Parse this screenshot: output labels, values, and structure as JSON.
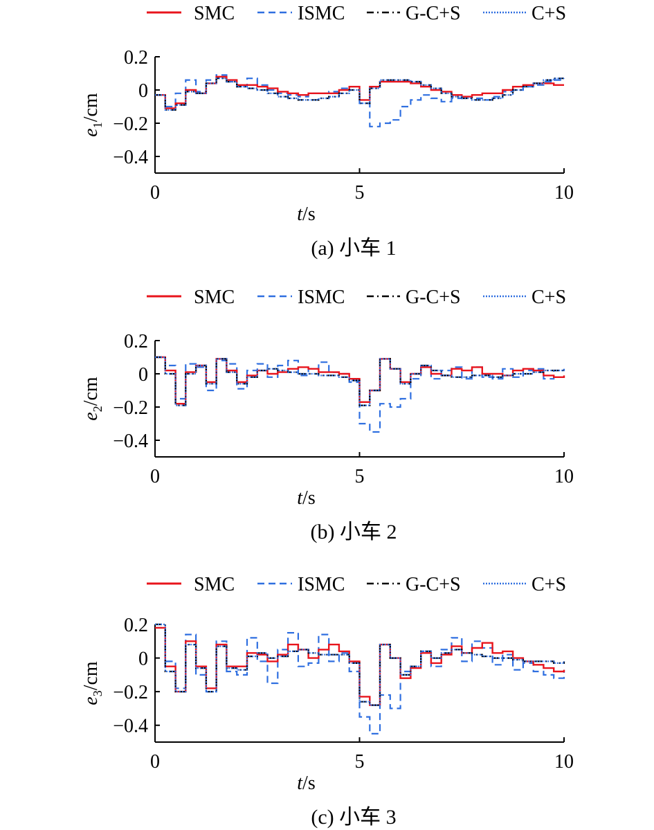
{
  "legend": [
    {
      "name": "SMC",
      "color": "#e8141c",
      "dash": "solid"
    },
    {
      "name": "ISMC",
      "color": "#2f6fe0",
      "dash": "dashed"
    },
    {
      "name": "G-C+S",
      "color": "#000000",
      "dash": "dashdot"
    },
    {
      "name": "C+S",
      "color": "#2f6fe0",
      "dash": "dotted"
    }
  ],
  "chart_data": [
    {
      "type": "line",
      "caption": "(a) 小车 1",
      "xlabel": "t/s",
      "ylabel": "e1/cm",
      "xlim": [
        0,
        10
      ],
      "ylim": [
        -0.5,
        0.2
      ],
      "xticks": [
        "0",
        "5",
        "10"
      ],
      "yticks": [
        "0.2",
        "0",
        "−0.2",
        "−0.4"
      ],
      "x": [
        0,
        0.25,
        0.5,
        0.75,
        1,
        1.25,
        1.5,
        1.75,
        2,
        2.25,
        2.5,
        2.75,
        3,
        3.25,
        3.5,
        3.75,
        4,
        4.25,
        4.5,
        4.75,
        5,
        5.25,
        5.5,
        5.75,
        6,
        6.25,
        6.5,
        6.75,
        7,
        7.25,
        7.5,
        7.75,
        8,
        8.25,
        8.5,
        8.75,
        9,
        9.25,
        9.5,
        9.75,
        10
      ],
      "series": [
        {
          "name": "SMC",
          "values": [
            -0.03,
            -0.11,
            -0.08,
            0,
            -0.02,
            0.04,
            0.08,
            0.06,
            0.03,
            0.03,
            0.02,
            0.01,
            -0.01,
            -0.02,
            -0.03,
            -0.02,
            -0.02,
            -0.02,
            0,
            0.02,
            -0.06,
            0.02,
            0.05,
            0.05,
            0.05,
            0.04,
            0.02,
            0,
            -0.01,
            -0.03,
            -0.04,
            -0.03,
            -0.02,
            -0.02,
            0,
            0.02,
            0.03,
            0.04,
            0.04,
            0.03,
            0.03
          ]
        },
        {
          "name": "ISMC",
          "values": [
            -0.03,
            -0.1,
            -0.02,
            0.06,
            -0.01,
            0.06,
            0.09,
            0.05,
            0.02,
            0.07,
            0.03,
            0,
            -0.02,
            -0.03,
            -0.04,
            -0.02,
            -0.02,
            -0.01,
            0.01,
            0.02,
            -0.08,
            -0.22,
            -0.2,
            -0.18,
            -0.1,
            -0.06,
            -0.03,
            -0.05,
            -0.07,
            -0.05,
            -0.04,
            -0.05,
            -0.06,
            -0.04,
            -0.01,
            0,
            0.02,
            0.03,
            0.05,
            0.06,
            0.07
          ]
        },
        {
          "name": "G-C+S",
          "values": [
            -0.03,
            -0.12,
            -0.09,
            -0.01,
            -0.02,
            0.04,
            0.07,
            0.05,
            0.02,
            0.01,
            0,
            -0.02,
            -0.04,
            -0.05,
            -0.06,
            -0.06,
            -0.05,
            -0.04,
            -0.02,
            0,
            -0.08,
            0.01,
            0.06,
            0.06,
            0.06,
            0.05,
            0.03,
            0.01,
            -0.02,
            -0.04,
            -0.05,
            -0.06,
            -0.06,
            -0.05,
            -0.03,
            0,
            0.02,
            0.04,
            0.06,
            0.07,
            0.07
          ]
        },
        {
          "name": "C+S",
          "values": [
            -0.03,
            -0.12,
            -0.09,
            -0.01,
            -0.02,
            0.04,
            0.07,
            0.05,
            0.02,
            0.01,
            0,
            -0.02,
            -0.04,
            -0.05,
            -0.06,
            -0.06,
            -0.05,
            -0.04,
            -0.02,
            0,
            -0.08,
            0.01,
            0.06,
            0.06,
            0.06,
            0.05,
            0.03,
            0.01,
            -0.02,
            -0.04,
            -0.05,
            -0.06,
            -0.06,
            -0.05,
            -0.03,
            0,
            0.02,
            0.04,
            0.06,
            0.07,
            0.07
          ]
        }
      ]
    },
    {
      "type": "line",
      "caption": "(b) 小车 2",
      "xlabel": "t/s",
      "ylabel": "e2/cm",
      "xlim": [
        0,
        10
      ],
      "ylim": [
        -0.5,
        0.2
      ],
      "xticks": [
        "0",
        "5",
        "10"
      ],
      "yticks": [
        "0.2",
        "0",
        "−0.2",
        "−0.4"
      ],
      "x": [
        0,
        0.25,
        0.5,
        0.75,
        1,
        1.25,
        1.5,
        1.75,
        2,
        2.25,
        2.5,
        2.75,
        3,
        3.25,
        3.5,
        3.75,
        4,
        4.25,
        4.5,
        4.75,
        5,
        5.25,
        5.5,
        5.75,
        6,
        6.25,
        6.5,
        6.75,
        7,
        7.25,
        7.5,
        7.75,
        8,
        8.25,
        8.5,
        8.75,
        9,
        9.25,
        9.5,
        9.75,
        10
      ],
      "series": [
        {
          "name": "SMC",
          "values": [
            0.1,
            0.02,
            -0.18,
            0.01,
            0.05,
            -0.05,
            0.09,
            0.02,
            -0.05,
            -0.01,
            0.02,
            0,
            0.01,
            0.03,
            0.04,
            0.03,
            0.01,
            0.01,
            0,
            -0.03,
            -0.17,
            -0.1,
            0.09,
            0.03,
            -0.05,
            0,
            0.04,
            0,
            -0.01,
            0.03,
            0.02,
            0.04,
            0,
            0,
            -0.01,
            0.02,
            0.03,
            0.02,
            -0.01,
            -0.02,
            -0.01
          ]
        },
        {
          "name": "ISMC",
          "values": [
            0.1,
            0.05,
            -0.15,
            0.06,
            0.04,
            -0.1,
            0.08,
            0.06,
            -0.09,
            0.02,
            0.06,
            -0.02,
            0.05,
            0.08,
            -0.01,
            0.03,
            0.07,
            0.01,
            0,
            -0.05,
            -0.3,
            -0.35,
            -0.18,
            -0.2,
            -0.15,
            -0.03,
            0.04,
            -0.03,
            0.02,
            0.04,
            -0.03,
            0.04,
            -0.02,
            -0.03,
            0.03,
            -0.02,
            0.02,
            0.03,
            -0.03,
            0.02,
            0.03
          ]
        },
        {
          "name": "G-C+S",
          "values": [
            0.1,
            0,
            -0.19,
            0,
            0.05,
            -0.06,
            0.09,
            0.01,
            -0.06,
            -0.02,
            0.02,
            0.03,
            0.02,
            0.01,
            0,
            0,
            -0.01,
            -0.01,
            -0.02,
            -0.04,
            -0.19,
            -0.1,
            0.09,
            0.03,
            -0.06,
            0,
            0.05,
            0.02,
            -0.01,
            -0.02,
            -0.02,
            -0.01,
            -0.01,
            -0.02,
            -0.01,
            0,
            0,
            0.01,
            0.02,
            0.02,
            0.02
          ]
        },
        {
          "name": "C+S",
          "values": [
            0.1,
            0,
            -0.19,
            0,
            0.05,
            -0.06,
            0.09,
            0.01,
            -0.06,
            -0.02,
            0.02,
            0.03,
            0.02,
            0.01,
            0,
            0,
            -0.01,
            -0.01,
            -0.02,
            -0.04,
            -0.19,
            -0.1,
            0.09,
            0.03,
            -0.06,
            0,
            0.05,
            0.02,
            -0.01,
            -0.02,
            -0.02,
            -0.01,
            -0.01,
            -0.02,
            -0.01,
            0,
            0,
            0.01,
            0.02,
            0.02,
            0.02
          ]
        }
      ]
    },
    {
      "type": "line",
      "caption": "(c) 小车 3",
      "xlabel": "t/s",
      "ylabel": "e3/cm",
      "xlim": [
        0,
        10
      ],
      "ylim": [
        -0.5,
        0.2
      ],
      "xticks": [
        "0",
        "5",
        "10"
      ],
      "yticks": [
        "0.2",
        "0",
        "−0.2",
        "−0.4"
      ],
      "x": [
        0,
        0.25,
        0.5,
        0.75,
        1,
        1.25,
        1.5,
        1.75,
        2,
        2.25,
        2.5,
        2.75,
        3,
        3.25,
        3.5,
        3.75,
        4,
        4.25,
        4.5,
        4.75,
        5,
        5.25,
        5.5,
        5.75,
        6,
        6.25,
        6.5,
        6.75,
        7,
        7.25,
        7.5,
        7.75,
        8,
        8.25,
        8.5,
        8.75,
        9,
        9.25,
        9.5,
        9.75,
        10
      ],
      "series": [
        {
          "name": "SMC",
          "values": [
            0.18,
            -0.05,
            -0.2,
            0.1,
            -0.05,
            -0.18,
            0.08,
            -0.05,
            -0.05,
            0.03,
            0.02,
            -0.02,
            0.02,
            0.08,
            0.05,
            0,
            0.05,
            0.08,
            0.04,
            -0.02,
            -0.23,
            -0.28,
            0.08,
            0,
            -0.12,
            -0.06,
            0.03,
            -0.03,
            0.02,
            0.07,
            0.03,
            0.06,
            0.09,
            0.03,
            0.04,
            0,
            -0.02,
            -0.04,
            -0.06,
            -0.08,
            -0.07
          ]
        },
        {
          "name": "ISMC",
          "values": [
            0.18,
            -0.02,
            -0.18,
            0.14,
            -0.1,
            -0.2,
            0.1,
            -0.08,
            -0.1,
            0.12,
            -0.02,
            -0.15,
            0.05,
            0.15,
            -0.05,
            -0.03,
            0.14,
            -0.02,
            0.03,
            -0.08,
            -0.35,
            -0.45,
            -0.22,
            -0.3,
            -0.08,
            -0.05,
            0.04,
            -0.05,
            0.05,
            0.12,
            -0.02,
            0.1,
            0.06,
            -0.04,
            0.02,
            -0.07,
            -0.03,
            -0.08,
            -0.1,
            -0.12,
            -0.07
          ]
        },
        {
          "name": "G-C+S",
          "values": [
            0.2,
            -0.08,
            -0.2,
            0.08,
            -0.06,
            -0.2,
            0.07,
            -0.06,
            -0.07,
            0.01,
            0.03,
            0,
            0.01,
            0.04,
            0.05,
            0.03,
            0.02,
            0.02,
            0.02,
            -0.03,
            -0.26,
            -0.28,
            0.08,
            0,
            -0.1,
            -0.05,
            0.04,
            0,
            0.03,
            0.05,
            0.03,
            0.02,
            0.01,
            0,
            0,
            -0.01,
            -0.02,
            -0.02,
            -0.02,
            -0.03,
            -0.02
          ]
        },
        {
          "name": "C+S",
          "values": [
            0.2,
            -0.08,
            -0.2,
            0.08,
            -0.06,
            -0.2,
            0.07,
            -0.06,
            -0.07,
            0.01,
            0.03,
            0,
            0.01,
            0.04,
            0.05,
            0.03,
            0.02,
            0.02,
            0.02,
            -0.03,
            -0.26,
            -0.28,
            0.08,
            0,
            -0.1,
            -0.05,
            0.04,
            0,
            0.03,
            0.05,
            0.03,
            0.02,
            0.01,
            0,
            0,
            -0.01,
            -0.02,
            -0.02,
            -0.02,
            -0.03,
            -0.02
          ]
        }
      ]
    }
  ]
}
